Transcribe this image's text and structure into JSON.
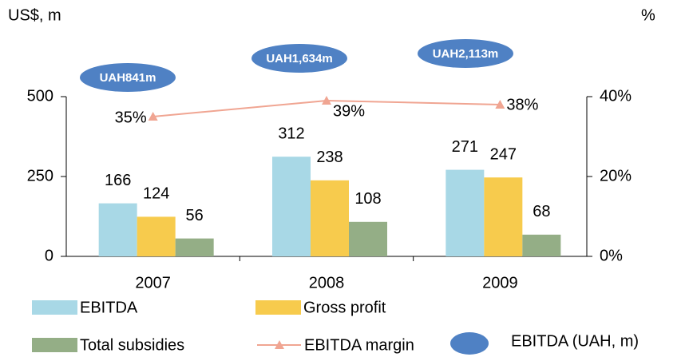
{
  "chart_data": {
    "type": "bar",
    "y_axis_label": "US$, m",
    "y2_axis_label": "%",
    "categories": [
      "2007",
      "2008",
      "2009"
    ],
    "series": [
      {
        "name": "EBITDA",
        "color": "#a8d8e6",
        "values": [
          166,
          312,
          271
        ]
      },
      {
        "name": "Gross profit",
        "color": "#f7cb4d",
        "values": [
          124,
          238,
          247
        ]
      },
      {
        "name": "Total subsidies",
        "color": "#94ae86",
        "values": [
          56,
          108,
          68
        ]
      },
      {
        "name": "EBITDA margin",
        "type": "line",
        "axis": "y2",
        "color": "#f0a592",
        "values": [
          35,
          39,
          38
        ],
        "value_labels": [
          "35%",
          "39%",
          "38%"
        ]
      }
    ],
    "annotations": {
      "name": "EBITDA (UAH, m)",
      "color": "#4f81c4",
      "labels": [
        "UAH841m",
        "UAH1,634m",
        "UAH2,113m"
      ]
    },
    "ylim": [
      0,
      500
    ],
    "yticks": [
      0,
      250,
      500
    ],
    "y2lim": [
      0,
      40
    ],
    "y2ticks": [
      {
        "value": 0,
        "label": "0%"
      },
      {
        "value": 20,
        "label": "20%"
      },
      {
        "value": 40,
        "label": "40%"
      }
    ]
  }
}
